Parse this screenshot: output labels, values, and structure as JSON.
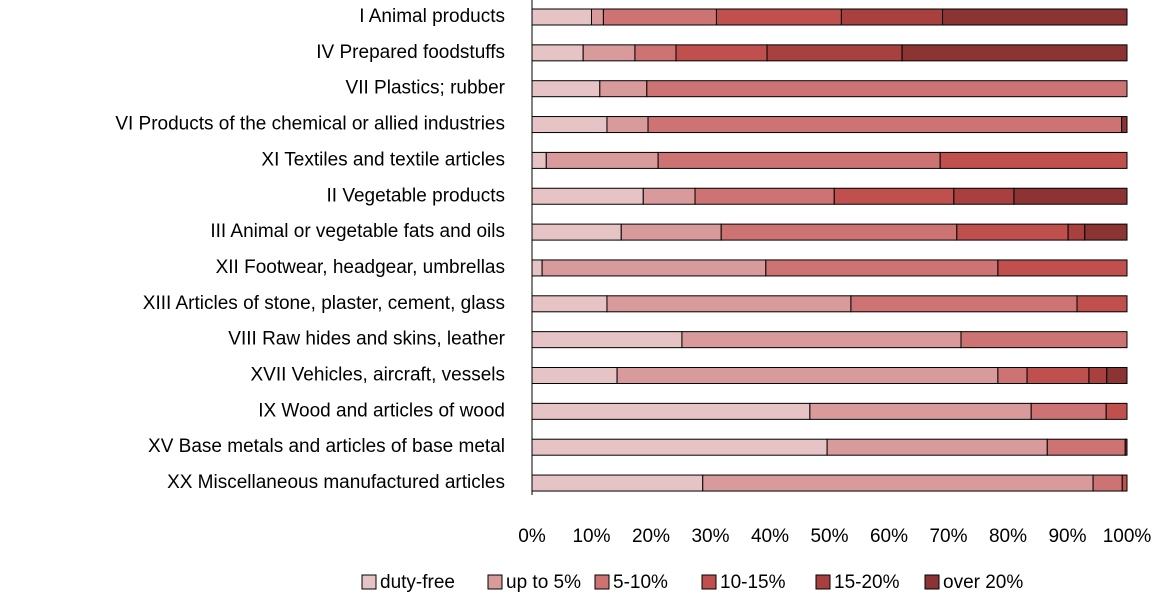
{
  "chart_data": {
    "type": "stacked_barh",
    "categories": [
      "I Animal products",
      "IV Prepared foodstuffs",
      "VII Plastics; rubber",
      "VI Products of the chemical or allied industries",
      "XI Textiles and textile articles",
      "II Vegetable products",
      "III Animal or vegetable fats and oils",
      "XII Footwear, headgear, umbrellas",
      "XIII Articles of stone, plaster, cement, glass",
      "VIII Raw hides and skins, leather",
      "XVII Vehicles, aircraft, vessels",
      "IX Wood and articles of wood",
      "XV Base metals and articles of base metal",
      "XX Miscellaneous manufactured articles"
    ],
    "series": [
      {
        "name": "duty-free",
        "color": "#e6c3c4",
        "values": [
          10,
          8.6,
          11.4,
          12.6,
          2.4,
          18.7,
          15,
          1.7,
          12.6,
          25.2,
          14.3,
          46.7,
          49.6,
          28.7
        ]
      },
      {
        "name": "up to 5%",
        "color": "#d99a9b",
        "values": [
          2,
          8.7,
          7.9,
          6.9,
          18.8,
          8.7,
          16.8,
          37.6,
          41,
          46.9,
          64,
          37.2,
          37,
          65.6
        ]
      },
      {
        "name": "5-10%",
        "color": "#cd7374",
        "values": [
          19,
          6.9,
          80.7,
          79.6,
          47.4,
          23.4,
          39.6,
          39,
          38,
          27.9,
          4.9,
          12.6,
          13.1,
          4.9
        ]
      },
      {
        "name": "10-15%",
        "color": "#c0504d",
        "values": [
          21,
          15.3,
          0,
          0,
          31.4,
          20.1,
          18.7,
          21.7,
          8.4,
          0,
          10.4,
          3.5,
          0,
          0.8
        ]
      },
      {
        "name": "15-20%",
        "color": "#a84040",
        "values": [
          17,
          22.7,
          0,
          0,
          0,
          10.1,
          2.8,
          0,
          0,
          0,
          3,
          0,
          0,
          0
        ]
      },
      {
        "name": "over 20%",
        "color": "#8c3434",
        "values": [
          31,
          37.8,
          0,
          0.9,
          0,
          19,
          7.1,
          0,
          0,
          0,
          3.4,
          0,
          0.3,
          0
        ]
      }
    ],
    "xlim": [
      0,
      100
    ],
    "xticks": [
      {
        "value": 0,
        "label": "0%"
      },
      {
        "value": 10,
        "label": "10%"
      },
      {
        "value": 20,
        "label": "20%"
      },
      {
        "value": 30,
        "label": "30%"
      },
      {
        "value": 40,
        "label": "40%"
      },
      {
        "value": 50,
        "label": "50%"
      },
      {
        "value": 60,
        "label": "60%"
      },
      {
        "value": 70,
        "label": "70%"
      },
      {
        "value": 80,
        "label": "80%"
      },
      {
        "value": 90,
        "label": "90%"
      },
      {
        "value": 100,
        "label": "100%"
      }
    ],
    "legend": "bottom"
  }
}
